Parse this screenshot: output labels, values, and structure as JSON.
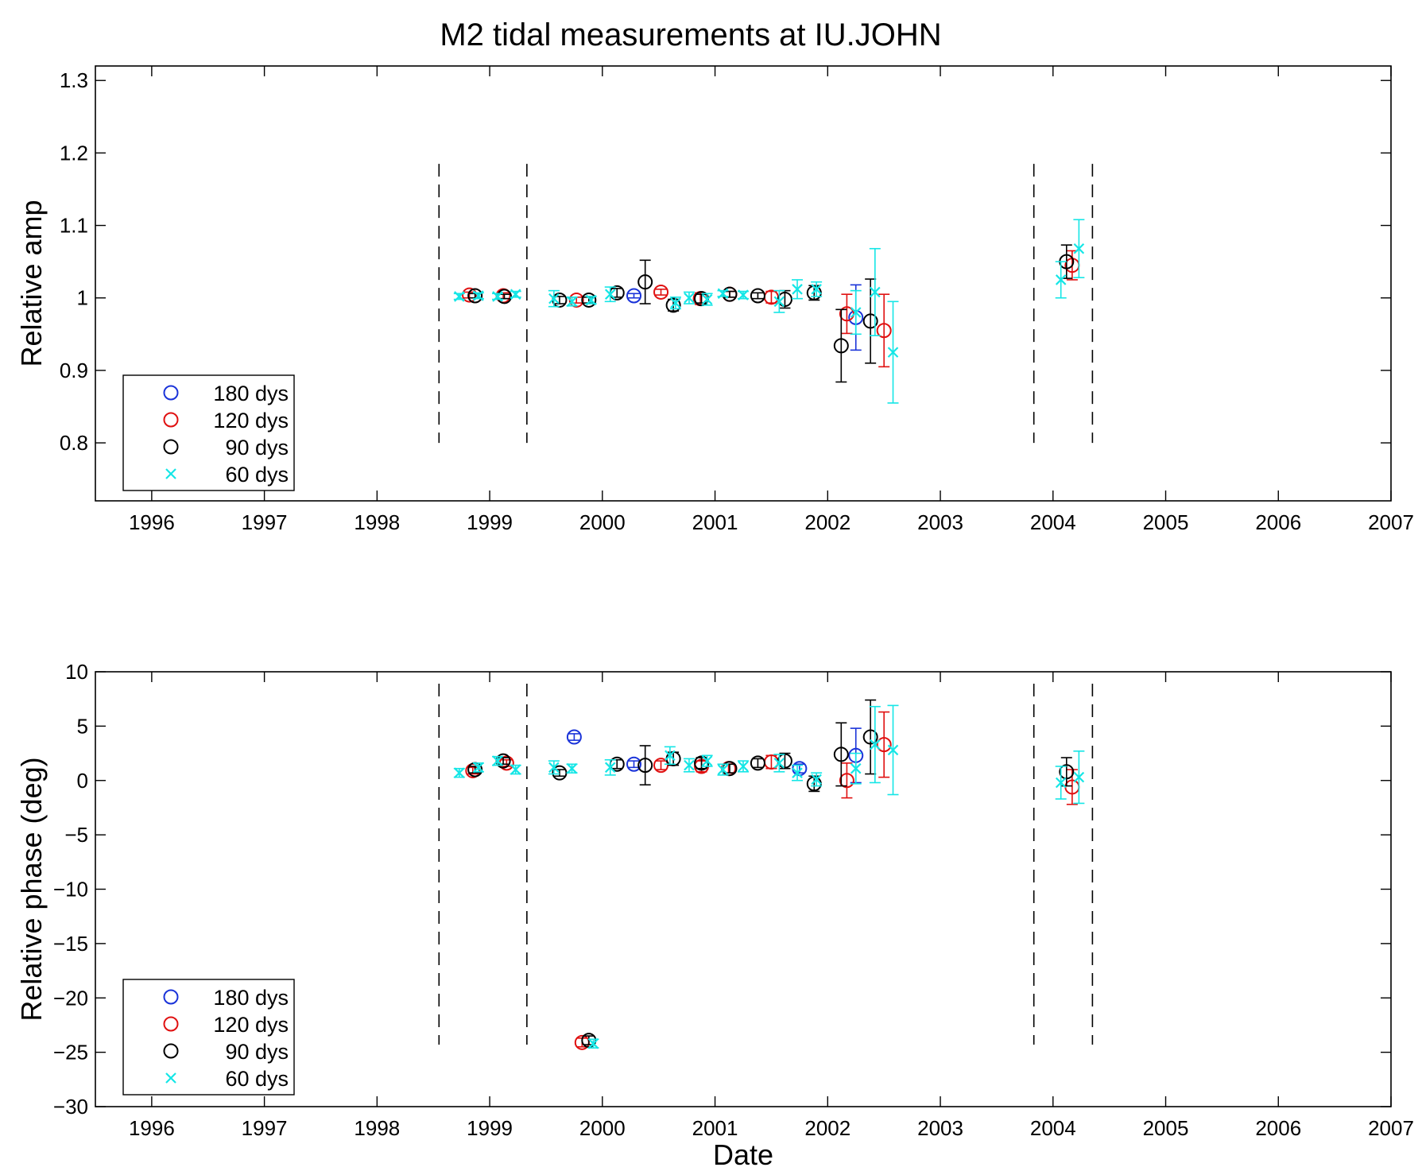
{
  "chart_data": {
    "type": "scatter",
    "title": "M2 tidal measurements at IU.JOHN",
    "xlabel": "Date",
    "xlim": [
      1995.5,
      2007
    ],
    "xticks": [
      1996,
      1997,
      1998,
      1999,
      2000,
      2001,
      2002,
      2003,
      2004,
      2005,
      2006,
      2007
    ],
    "colors": {
      "180 dys": "#1a33d9",
      "120 dys": "#e01010",
      "90 dys": "#000000",
      "60 dys": "#14e6e6"
    },
    "legend_position": "bottom-left",
    "dashed_markers_x": [
      1998.55,
      1999.33,
      2003.83,
      2004.35
    ],
    "panels": [
      {
        "ylabel": "Relative amp",
        "ylim": [
          0.72,
          1.32
        ],
        "yticks": [
          0.8,
          0.9,
          1,
          1.1,
          1.2,
          1.3
        ],
        "ytick_labels": [
          "0.8",
          "0.9",
          "1",
          "1.1",
          "1.2",
          "1.3"
        ],
        "dashed_y_range": [
          0.8,
          1.185
        ],
        "legend": [
          "180 dys",
          "120 dys",
          "90 dys",
          "60 dys"
        ],
        "series": [
          {
            "name": "180 dys",
            "marker": "o",
            "points": [
              {
                "x": 2000.28,
                "y": 1.003,
                "err": 0.003
              },
              {
                "x": 2002.25,
                "y": 0.973,
                "err": 0.045
              }
            ]
          },
          {
            "name": "120 dys",
            "marker": "o",
            "points": [
              {
                "x": 1998.82,
                "y": 1.004,
                "err": 0.004
              },
              {
                "x": 1999.12,
                "y": 1.003,
                "err": 0.004
              },
              {
                "x": 1999.77,
                "y": 0.997,
                "err": 0.004
              },
              {
                "x": 2000.52,
                "y": 1.008,
                "err": 0.004
              },
              {
                "x": 2000.87,
                "y": 0.999,
                "err": 0.008
              },
              {
                "x": 2001.13,
                "y": 1.005,
                "err": 0.004
              },
              {
                "x": 2001.5,
                "y": 1.001,
                "err": 0.008
              },
              {
                "x": 2002.17,
                "y": 0.978,
                "err": 0.027
              },
              {
                "x": 2002.5,
                "y": 0.955,
                "err": 0.05
              },
              {
                "x": 2004.17,
                "y": 1.045,
                "err": 0.02
              }
            ]
          },
          {
            "name": "90 dys",
            "marker": "o",
            "points": [
              {
                "x": 1998.87,
                "y": 1.003,
                "err": 0.003
              },
              {
                "x": 1999.13,
                "y": 1.002,
                "err": 0.003
              },
              {
                "x": 1999.62,
                "y": 0.997,
                "err": 0.005
              },
              {
                "x": 1999.88,
                "y": 0.997,
                "err": 0.004
              },
              {
                "x": 2000.13,
                "y": 1.007,
                "err": 0.006
              },
              {
                "x": 2000.38,
                "y": 1.022,
                "err": 0.03
              },
              {
                "x": 2000.63,
                "y": 0.99,
                "err": 0.008
              },
              {
                "x": 2000.88,
                "y": 0.999,
                "err": 0.006
              },
              {
                "x": 2001.13,
                "y": 1.005,
                "err": 0.004
              },
              {
                "x": 2001.38,
                "y": 1.003,
                "err": 0.004
              },
              {
                "x": 2001.62,
                "y": 0.998,
                "err": 0.012
              },
              {
                "x": 2001.88,
                "y": 1.007,
                "err": 0.01
              },
              {
                "x": 2002.12,
                "y": 0.934,
                "err": 0.05
              },
              {
                "x": 2002.38,
                "y": 0.968,
                "err": 0.058
              },
              {
                "x": 2004.12,
                "y": 1.05,
                "err": 0.023
              }
            ]
          },
          {
            "name": "60 dys",
            "marker": "x",
            "points": [
              {
                "x": 1998.73,
                "y": 1.002,
                "err": 0.004
              },
              {
                "x": 1998.9,
                "y": 1.003,
                "err": 0.004
              },
              {
                "x": 1999.07,
                "y": 1.002,
                "err": 0.004
              },
              {
                "x": 1999.23,
                "y": 1.005,
                "err": 0.004
              },
              {
                "x": 1999.57,
                "y": 0.999,
                "err": 0.011
              },
              {
                "x": 1999.73,
                "y": 0.995,
                "err": 0.006
              },
              {
                "x": 1999.9,
                "y": 0.997,
                "err": 0.005
              },
              {
                "x": 2000.07,
                "y": 1.005,
                "err": 0.01
              },
              {
                "x": 2000.65,
                "y": 0.993,
                "err": 0.008
              },
              {
                "x": 2000.77,
                "y": 1.0,
                "err": 0.008
              },
              {
                "x": 2000.93,
                "y": 0.998,
                "err": 0.008
              },
              {
                "x": 2001.07,
                "y": 1.006,
                "err": 0.004
              },
              {
                "x": 2001.25,
                "y": 1.004,
                "err": 0.005
              },
              {
                "x": 2001.57,
                "y": 0.995,
                "err": 0.015
              },
              {
                "x": 2001.73,
                "y": 1.012,
                "err": 0.013
              },
              {
                "x": 2001.9,
                "y": 1.012,
                "err": 0.01
              },
              {
                "x": 2002.25,
                "y": 0.98,
                "err": 0.03
              },
              {
                "x": 2002.42,
                "y": 1.008,
                "err": 0.06
              },
              {
                "x": 2002.58,
                "y": 0.925,
                "err": 0.07
              },
              {
                "x": 2004.07,
                "y": 1.025,
                "err": 0.025
              },
              {
                "x": 2004.23,
                "y": 1.068,
                "err": 0.04
              }
            ]
          }
        ]
      },
      {
        "ylabel": "Relative phase (deg)",
        "ylim": [
          -30,
          10
        ],
        "yticks": [
          -30,
          -25,
          -20,
          -15,
          -10,
          -5,
          0,
          5,
          10
        ],
        "ytick_labels": [
          "−30",
          "−25",
          "−20",
          "−15",
          "−10",
          "−5",
          "0",
          "5",
          "10"
        ],
        "dashed_y_range": [
          -24.3,
          8.9
        ],
        "legend": [
          "180 dys",
          "120 dys",
          "90 dys",
          "60 dys"
        ],
        "series": [
          {
            "name": "180 dys",
            "marker": "o",
            "points": [
              {
                "x": 1999.75,
                "y": 4.0,
                "err": 0.3
              },
              {
                "x": 2000.28,
                "y": 1.5,
                "err": 0.3
              },
              {
                "x": 2001.75,
                "y": 1.1,
                "err": 0.4
              },
              {
                "x": 2002.25,
                "y": 2.3,
                "err": 2.5
              }
            ]
          },
          {
            "name": "120 dys",
            "marker": "o",
            "points": [
              {
                "x": 1998.85,
                "y": 0.9,
                "err": 0.3
              },
              {
                "x": 1999.15,
                "y": 1.6,
                "err": 0.3
              },
              {
                "x": 1999.82,
                "y": -24.1,
                "err": 0.4
              },
              {
                "x": 2000.52,
                "y": 1.4,
                "err": 0.4
              },
              {
                "x": 2000.88,
                "y": 1.3,
                "err": 0.5
              },
              {
                "x": 2001.12,
                "y": 1.1,
                "err": 0.4
              },
              {
                "x": 2001.5,
                "y": 1.7,
                "err": 0.6
              },
              {
                "x": 2002.17,
                "y": 0.0,
                "err": 1.6
              },
              {
                "x": 2002.5,
                "y": 3.3,
                "err": 3.0
              },
              {
                "x": 2004.17,
                "y": -0.6,
                "err": 1.6
              }
            ]
          },
          {
            "name": "90 dys",
            "marker": "o",
            "points": [
              {
                "x": 1998.87,
                "y": 1.0,
                "err": 0.3
              },
              {
                "x": 1999.12,
                "y": 1.8,
                "err": 0.3
              },
              {
                "x": 1999.62,
                "y": 0.7,
                "err": 0.3
              },
              {
                "x": 1999.88,
                "y": -23.9,
                "err": 0.4
              },
              {
                "x": 2000.13,
                "y": 1.5,
                "err": 0.4
              },
              {
                "x": 2000.38,
                "y": 1.4,
                "err": 1.8
              },
              {
                "x": 2000.63,
                "y": 2.0,
                "err": 0.6
              },
              {
                "x": 2000.88,
                "y": 1.6,
                "err": 0.5
              },
              {
                "x": 2001.13,
                "y": 1.1,
                "err": 0.4
              },
              {
                "x": 2001.38,
                "y": 1.6,
                "err": 0.4
              },
              {
                "x": 2001.62,
                "y": 1.8,
                "err": 0.7
              },
              {
                "x": 2001.88,
                "y": -0.3,
                "err": 0.7
              },
              {
                "x": 2002.12,
                "y": 2.4,
                "err": 2.9
              },
              {
                "x": 2002.38,
                "y": 4.0,
                "err": 3.4
              },
              {
                "x": 2004.12,
                "y": 0.8,
                "err": 1.3
              }
            ]
          },
          {
            "name": "60 dys",
            "marker": "x",
            "points": [
              {
                "x": 1998.73,
                "y": 0.7,
                "err": 0.4
              },
              {
                "x": 1998.9,
                "y": 1.2,
                "err": 0.4
              },
              {
                "x": 1999.07,
                "y": 1.8,
                "err": 0.4
              },
              {
                "x": 1999.23,
                "y": 1.0,
                "err": 0.4
              },
              {
                "x": 1999.57,
                "y": 1.2,
                "err": 0.6
              },
              {
                "x": 1999.73,
                "y": 1.1,
                "err": 0.4
              },
              {
                "x": 1999.92,
                "y": -24.2,
                "err": 0.4
              },
              {
                "x": 2000.07,
                "y": 1.2,
                "err": 0.7
              },
              {
                "x": 2000.6,
                "y": 2.3,
                "err": 0.8
              },
              {
                "x": 2000.77,
                "y": 1.4,
                "err": 0.6
              },
              {
                "x": 2000.93,
                "y": 1.8,
                "err": 0.5
              },
              {
                "x": 2001.07,
                "y": 1.0,
                "err": 0.5
              },
              {
                "x": 2001.25,
                "y": 1.3,
                "err": 0.5
              },
              {
                "x": 2001.57,
                "y": 1.6,
                "err": 0.8
              },
              {
                "x": 2001.73,
                "y": 0.7,
                "err": 0.7
              },
              {
                "x": 2001.9,
                "y": 0.1,
                "err": 0.6
              },
              {
                "x": 2002.25,
                "y": 1.1,
                "err": 1.4
              },
              {
                "x": 2002.42,
                "y": 3.3,
                "err": 3.5
              },
              {
                "x": 2002.58,
                "y": 2.8,
                "err": 4.1
              },
              {
                "x": 2004.07,
                "y": -0.2,
                "err": 1.5
              },
              {
                "x": 2004.23,
                "y": 0.3,
                "err": 2.4
              }
            ]
          }
        ]
      }
    ]
  }
}
